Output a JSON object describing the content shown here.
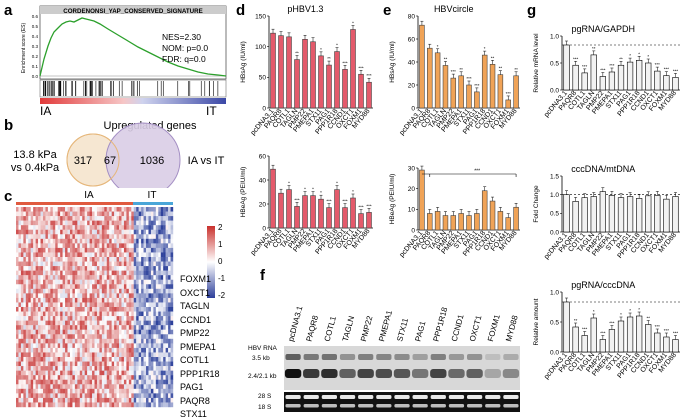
{
  "panel_labels": {
    "a": "a",
    "b": "b",
    "c": "c",
    "d": "d",
    "e": "e",
    "f": "f",
    "g": "g"
  },
  "gsea": {
    "title": "CORDENONSI_YAP_CONSERVED_SIGNATURE",
    "ylabel": "Enrichment score (ES)",
    "stats": [
      "NES=2.30",
      "NOM: p=0.0",
      "FDR: q=0.0"
    ],
    "left": "IA",
    "right": "IT",
    "yticks": [
      "0.6",
      "0.5",
      "0.4",
      "0.3",
      "0.2",
      "0.1",
      "0.0"
    ]
  },
  "venn": {
    "title": "Upregulated genes",
    "left_label": [
      "13.8 kPa",
      "vs 0.4kPa"
    ],
    "right_label": "IA vs IT",
    "left_only": "317",
    "overlap": "67",
    "right_only": "1036",
    "left_color": "#f6e7d2",
    "right_color": "#d9cde6"
  },
  "heatmap": {
    "group_left": "IA",
    "group_right": "IT",
    "legend": [
      "2",
      "1",
      "0",
      "-1",
      "-2"
    ],
    "genes": [
      "FOXM1",
      "OXCT1",
      "TAGLN",
      "CCND1",
      "PMP22",
      "PMEPA1",
      "COTL1",
      "PPP1R18",
      "PAG1",
      "PAQR8",
      "STX11"
    ]
  },
  "categories": [
    "pcDNA3.1",
    "PAQR8",
    "COTL1",
    "TAGLN",
    "PMP22",
    "PMEPA1",
    "STX11",
    "PAG1",
    "PPP1R18",
    "CCND1",
    "OXCT1",
    "FOXM1",
    "MYD88"
  ],
  "chart_data": [
    {
      "id": "d1",
      "type": "bar",
      "title": "pHBV1.3",
      "ylabel": "HBsAg (IU/ml)",
      "ylim": [
        0,
        150
      ],
      "yticks": [
        "0",
        "50",
        "100",
        "150"
      ],
      "values": [
        122,
        118,
        116,
        79,
        112,
        108,
        85,
        70,
        92,
        63,
        128,
        55,
        42
      ],
      "stars": [
        "",
        "",
        "",
        "**",
        "",
        "",
        "*",
        "**",
        "*",
        "***",
        "*",
        "***",
        "***"
      ],
      "color": "#e45a6b"
    },
    {
      "id": "d2",
      "type": "bar",
      "title": "",
      "ylabel": "HBeAg (PEIU/ml)",
      "ylim": [
        0,
        60
      ],
      "yticks": [
        "0",
        "20",
        "40",
        "60"
      ],
      "values": [
        49,
        29,
        32,
        18,
        27,
        27,
        24,
        17,
        32,
        17,
        25,
        12,
        13
      ],
      "stars": [
        "",
        "",
        "*",
        "***",
        "*",
        "*",
        "*",
        "***",
        "*",
        "***",
        "*",
        "***",
        "***"
      ],
      "color": "#e45a6b"
    },
    {
      "id": "e1",
      "type": "bar",
      "title": "HBVcircle",
      "ylabel": "HBsAg (IU/ml)",
      "ylim": [
        0,
        80
      ],
      "yticks": [
        "0",
        "20",
        "40",
        "60",
        "80"
      ],
      "values": [
        72,
        52,
        48,
        37,
        26,
        28,
        20,
        14,
        46,
        38,
        29,
        7,
        28
      ],
      "stars": [
        "",
        "",
        "*",
        "**",
        "***",
        "**",
        "***",
        "***",
        "*",
        "**",
        "**",
        "***",
        "**"
      ],
      "color": "#f0a357"
    },
    {
      "id": "e2",
      "type": "bar",
      "title": "",
      "ylabel": "HBeAg (PEIU/ml)",
      "ylim": [
        0,
        30
      ],
      "yticks": [
        "0",
        "10",
        "20",
        "30"
      ],
      "values": [
        29,
        8,
        9,
        7,
        7,
        8,
        7,
        8,
        19,
        14,
        9,
        6,
        11
      ],
      "stars": [
        "",
        "",
        "",
        "",
        "",
        "",
        "",
        "",
        "",
        "",
        "",
        "",
        ""
      ],
      "bracket": "***",
      "color": "#f0a357"
    },
    {
      "id": "g1",
      "type": "bar",
      "title": "pgRNA/GAPDH",
      "ylabel": "Relative mRNA level",
      "ylim": [
        0,
        1.2
      ],
      "yticks": [
        "0.0",
        "0.5",
        "1.0"
      ],
      "values": [
        1.0,
        0.55,
        0.38,
        0.78,
        0.3,
        0.4,
        0.55,
        0.62,
        0.66,
        0.6,
        0.42,
        0.32,
        0.28
      ],
      "stars": [
        "",
        "***",
        "***",
        "**",
        "***",
        "***",
        "**",
        "*",
        "*",
        "*",
        "***",
        "***",
        "***"
      ],
      "color": "#f2f2f2"
    },
    {
      "id": "g2",
      "type": "bar",
      "title": "cccDNA/mtDNA",
      "ylabel": "Fold Change",
      "ylim": [
        0,
        1.5
      ],
      "yticks": [
        "0.0",
        "0.5",
        "1.0",
        "1.5"
      ],
      "values": [
        1.0,
        0.82,
        0.92,
        0.95,
        1.08,
        0.98,
        0.92,
        0.95,
        0.9,
        0.97,
        0.98,
        0.88,
        0.95
      ],
      "stars": [
        "",
        "",
        "",
        "",
        "",
        "",
        "",
        "",
        "",
        "",
        "",
        "",
        ""
      ],
      "color": "#f2f2f2"
    },
    {
      "id": "g3",
      "type": "bar",
      "title": "pgRNA/cccDNA",
      "ylabel": "Relative amount",
      "ylim": [
        0,
        1.2
      ],
      "yticks": [
        "0.0",
        "0.5",
        "1.0"
      ],
      "values": [
        1.0,
        0.5,
        0.33,
        0.68,
        0.25,
        0.45,
        0.62,
        0.7,
        0.72,
        0.55,
        0.38,
        0.3,
        0.25
      ],
      "stars": [
        "",
        "**",
        "***",
        "*",
        "***",
        "***",
        "*",
        "*",
        "*",
        "**",
        "***",
        "***",
        "***"
      ],
      "color": "#f2f2f2"
    }
  ],
  "gel": {
    "lanes": [
      "pcDNA3.1",
      "PAQR8",
      "COTL1",
      "TAGLN",
      "PMP22",
      "PMEPA1",
      "STX11",
      "PAG1",
      "PPP1R18",
      "CCND1",
      "OXCT1",
      "FOXM1",
      "MYD88"
    ],
    "header": "HBV RNA",
    "markers": [
      "3.5 kb",
      "2.4/2.1 kb"
    ],
    "bottom": [
      "28 S",
      "18 S"
    ]
  }
}
